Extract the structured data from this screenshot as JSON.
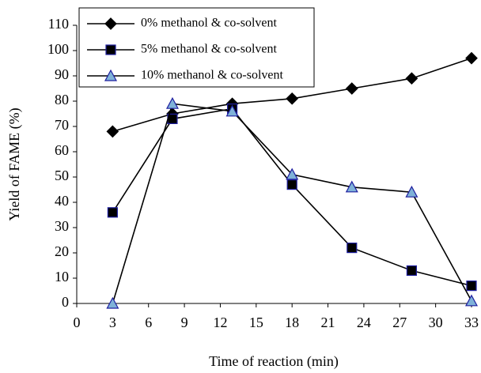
{
  "chart_data": {
    "type": "line",
    "x_label": "Time of reaction (min)",
    "y_label": "Yield of FAME (%)",
    "x": [
      3,
      8,
      13,
      18,
      23,
      28,
      33
    ],
    "series": [
      {
        "name": "0% methanol & co-solvent",
        "color": "#000000",
        "marker": "diamond",
        "marker_fill": "#000000",
        "marker_edge": "#000000",
        "values": [
          68,
          75,
          79,
          81,
          85,
          89,
          97
        ]
      },
      {
        "name": "5% methanol & co-solvent",
        "color": "#000000",
        "marker": "square",
        "marker_fill": "#000000",
        "marker_edge": "#1f1fa0",
        "values": [
          36,
          73,
          77,
          47,
          22,
          13,
          7
        ]
      },
      {
        "name": "10% methanol & co-solvent",
        "color": "#000000",
        "marker": "triangle",
        "marker_fill": "#7fb2d8",
        "marker_edge": "#1f1fa0",
        "values": [
          0,
          79,
          76,
          51,
          46,
          44,
          1
        ]
      }
    ],
    "xlim": [
      0,
      33
    ],
    "xticks": [
      0,
      3,
      6,
      9,
      12,
      15,
      18,
      21,
      24,
      27,
      30,
      33
    ],
    "ylim": [
      0,
      110
    ],
    "yticks": [
      0,
      10,
      20,
      30,
      40,
      50,
      60,
      70,
      80,
      90,
      100,
      110
    ],
    "grid": false,
    "legend": "upper left"
  }
}
